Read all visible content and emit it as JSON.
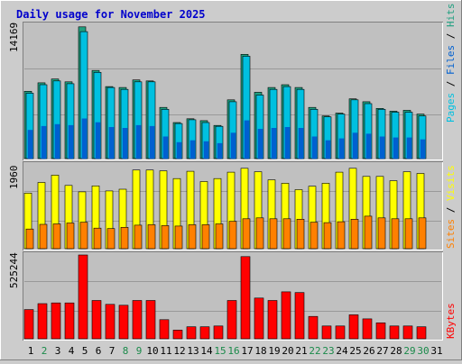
{
  "title": "Daily usage for November 2025",
  "colors": {
    "background": "#cccccc",
    "panel": "#c0c0c0",
    "title": "#0000cc",
    "pages": "#00c0e0",
    "files": "#0060d0",
    "hits": "#20a080",
    "visits": "#ffff00",
    "sites": "#ff8000",
    "kbytes": "#ff0000",
    "weekend_day": "#1a8a4a",
    "weekday": "#000000"
  },
  "panel_labels": {
    "top_max": "14169",
    "middle_max": "1960",
    "bottom_max": "525244"
  },
  "legend": {
    "top": {
      "pages": "Pages",
      "sep1": " / ",
      "files": "Files",
      "sep2": " / ",
      "hits": "Hits"
    },
    "middle": {
      "sites": "Sites",
      "sep": " / ",
      "visits": "Visits"
    },
    "bottom": {
      "kbytes": "KBytes"
    }
  },
  "chart_data": {
    "type": "bar",
    "title": "Daily usage for November 2025",
    "categories": [
      "1",
      "2",
      "3",
      "4",
      "5",
      "6",
      "7",
      "8",
      "9",
      "10",
      "11",
      "12",
      "13",
      "14",
      "15",
      "16",
      "17",
      "18",
      "19",
      "20",
      "21",
      "22",
      "23",
      "24",
      "25",
      "26",
      "27",
      "28",
      "29",
      "30",
      "31"
    ],
    "weekend_days": [
      "2",
      "8",
      "9",
      "15",
      "16",
      "22",
      "23",
      "29",
      "30"
    ],
    "panels": [
      {
        "name": "hits-files-pages",
        "ylim": [
          0,
          14169
        ],
        "series": [
          {
            "name": "Hits",
            "values": [
              7100,
              8000,
              8400,
              8100,
              13900,
              9300,
              7600,
              7500,
              8300,
              8200,
              5400,
              3800,
              4200,
              4000,
              3500,
              6200,
              11000,
              7000,
              7500,
              7800,
              7500,
              5400,
              4500,
              4800,
              6300,
              6000,
              5300,
              5000,
              5100,
              4700,
              0
            ]
          },
          {
            "name": "Files",
            "values": [
              6900,
              7800,
              8200,
              7900,
              13400,
              9100,
              7500,
              7300,
              8100,
              8100,
              5200,
              3700,
              4100,
              3800,
              3400,
              6000,
              10800,
              6700,
              7300,
              7600,
              7300,
              5200,
              4400,
              4700,
              6200,
              5800,
              5200,
              4900,
              4900,
              4500,
              0
            ]
          },
          {
            "name": "Pages",
            "values": [
              3000,
              3400,
              3600,
              3500,
              4200,
              3800,
              3300,
              3200,
              3500,
              3400,
              2300,
              1700,
              1900,
              1800,
              1600,
              2700,
              4000,
              3100,
              3200,
              3300,
              3200,
              2300,
              1900,
              2100,
              2700,
              2600,
              2300,
              2200,
              2200,
              2000,
              0
            ]
          }
        ]
      },
      {
        "name": "visits-sites",
        "ylim": [
          0,
          1960
        ],
        "series": [
          {
            "name": "Visits",
            "values": [
              1300,
              1550,
              1720,
              1480,
              1330,
              1470,
              1350,
              1390,
              1840,
              1840,
              1820,
              1640,
              1810,
              1570,
              1640,
              1790,
              1880,
              1800,
              1610,
              1530,
              1380,
              1460,
              1530,
              1790,
              1880,
              1690,
              1690,
              1590,
              1800,
              1760,
              0
            ]
          },
          {
            "name": "Sites",
            "values": [
              460,
              570,
              580,
              600,
              620,
              480,
              470,
              500,
              550,
              560,
              540,
              530,
              560,
              560,
              580,
              640,
              700,
              720,
              700,
              700,
              690,
              620,
              610,
              630,
              690,
              760,
              720,
              700,
              700,
              720,
              0
            ]
          }
        ]
      },
      {
        "name": "kbytes",
        "ylim": [
          0,
          525244
        ],
        "series": [
          {
            "name": "KBytes",
            "values": [
              183000,
              220000,
              225000,
              225000,
              525244,
              240000,
              216000,
              210000,
              240000,
              240000,
              120000,
              54000,
              75000,
              75000,
              80000,
              240000,
              515000,
              255000,
              240000,
              294000,
              290000,
              140000,
              80000,
              80000,
              150000,
              125000,
              100000,
              80000,
              80000,
              75000,
              0
            ]
          }
        ]
      }
    ]
  }
}
